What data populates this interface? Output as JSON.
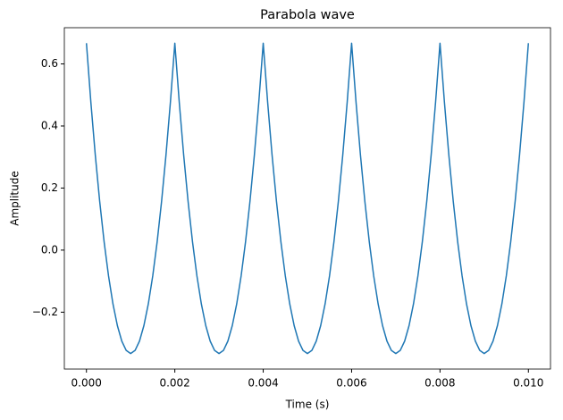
{
  "chart_data": {
    "type": "line",
    "title": "Parabola wave",
    "x_label": "Time (s)",
    "y_label": "Amplitude",
    "x": [
      0,
      0.0001,
      0.0002,
      0.0003,
      0.0004,
      0.0005,
      0.0006,
      0.0007,
      0.0008,
      0.0009,
      0.001,
      0.0011,
      0.0012,
      0.0013,
      0.0014,
      0.0015,
      0.0016,
      0.0017,
      0.0018,
      0.0019,
      0.002,
      0.0021,
      0.0022,
      0.0023,
      0.0024,
      0.0025,
      0.0026,
      0.0027,
      0.0028,
      0.0029,
      0.003,
      0.0031,
      0.0032,
      0.0033,
      0.0034,
      0.0035,
      0.0036,
      0.0037,
      0.0038,
      0.0039,
      0.004,
      0.0041,
      0.0042,
      0.0043,
      0.0044,
      0.0045,
      0.0046,
      0.0047,
      0.0048,
      0.0049,
      0.005,
      0.0051,
      0.0052,
      0.0053,
      0.0054,
      0.0055,
      0.0056,
      0.0057,
      0.0058,
      0.0059,
      0.006,
      0.0061,
      0.0062,
      0.0063,
      0.0064,
      0.0065,
      0.0066,
      0.0067,
      0.0068,
      0.0069,
      0.007,
      0.0071,
      0.0072,
      0.0073,
      0.0074,
      0.0075,
      0.0076,
      0.0077,
      0.0078,
      0.0079,
      0.008,
      0.0081,
      0.0082,
      0.0083,
      0.0084,
      0.0085,
      0.0086,
      0.0087,
      0.0088,
      0.0089,
      0.009,
      0.0091,
      0.0092,
      0.0093,
      0.0094,
      0.0095,
      0.0096,
      0.0097,
      0.0098,
      0.0099,
      0.01
    ],
    "series": [
      {
        "name": "Parabola wave",
        "color": "#1f77b4",
        "values": [
          0.6667,
          0.4767,
          0.3067,
          0.1567,
          0.0267,
          -0.0833,
          -0.1733,
          -0.2433,
          -0.2933,
          -0.3233,
          -0.3333,
          -0.3233,
          -0.2933,
          -0.2433,
          -0.1733,
          -0.0833,
          0.0267,
          0.1567,
          0.3067,
          0.4767,
          0.6667,
          0.4767,
          0.3067,
          0.1567,
          0.0267,
          -0.0833,
          -0.1733,
          -0.2433,
          -0.2933,
          -0.3233,
          -0.3333,
          -0.3233,
          -0.2933,
          -0.2433,
          -0.1733,
          -0.0833,
          0.0267,
          0.1567,
          0.3067,
          0.4767,
          0.6667,
          0.4767,
          0.3067,
          0.1567,
          0.0267,
          -0.0833,
          -0.1733,
          -0.2433,
          -0.2933,
          -0.3233,
          -0.3333,
          -0.3233,
          -0.2933,
          -0.2433,
          -0.1733,
          -0.0833,
          0.0267,
          0.1567,
          0.3067,
          0.4767,
          0.6667,
          0.4767,
          0.3067,
          0.1567,
          0.0267,
          -0.0833,
          -0.1733,
          -0.2433,
          -0.2933,
          -0.3233,
          -0.3333,
          -0.3233,
          -0.2933,
          -0.2433,
          -0.1733,
          -0.0833,
          0.0267,
          0.1567,
          0.3067,
          0.4767,
          0.6667,
          0.4767,
          0.3067,
          0.1567,
          0.0267,
          -0.0833,
          -0.1733,
          -0.2433,
          -0.2933,
          -0.3233,
          -0.3333,
          -0.3233,
          -0.2933,
          -0.2433,
          -0.1733,
          -0.0833,
          0.0267,
          0.1567,
          0.3067,
          0.4767,
          0.6667
        ]
      }
    ],
    "xlim": [
      -0.0005,
      0.0105
    ],
    "xticks": [
      {
        "value": 0,
        "label": "0.000"
      },
      {
        "value": 0.002,
        "label": "0.002"
      },
      {
        "value": 0.004,
        "label": "0.004"
      },
      {
        "value": 0.006,
        "label": "0.006"
      },
      {
        "value": 0.008,
        "label": "0.008"
      },
      {
        "value": 0.01,
        "label": "0.010"
      }
    ],
    "ylim": [
      -0.3833,
      0.7167
    ],
    "yticks": [
      {
        "value": -0.2,
        "label": "−0.2"
      },
      {
        "value": 0,
        "label": "0.0"
      },
      0.2,
      0.4,
      0.6
    ]
  }
}
